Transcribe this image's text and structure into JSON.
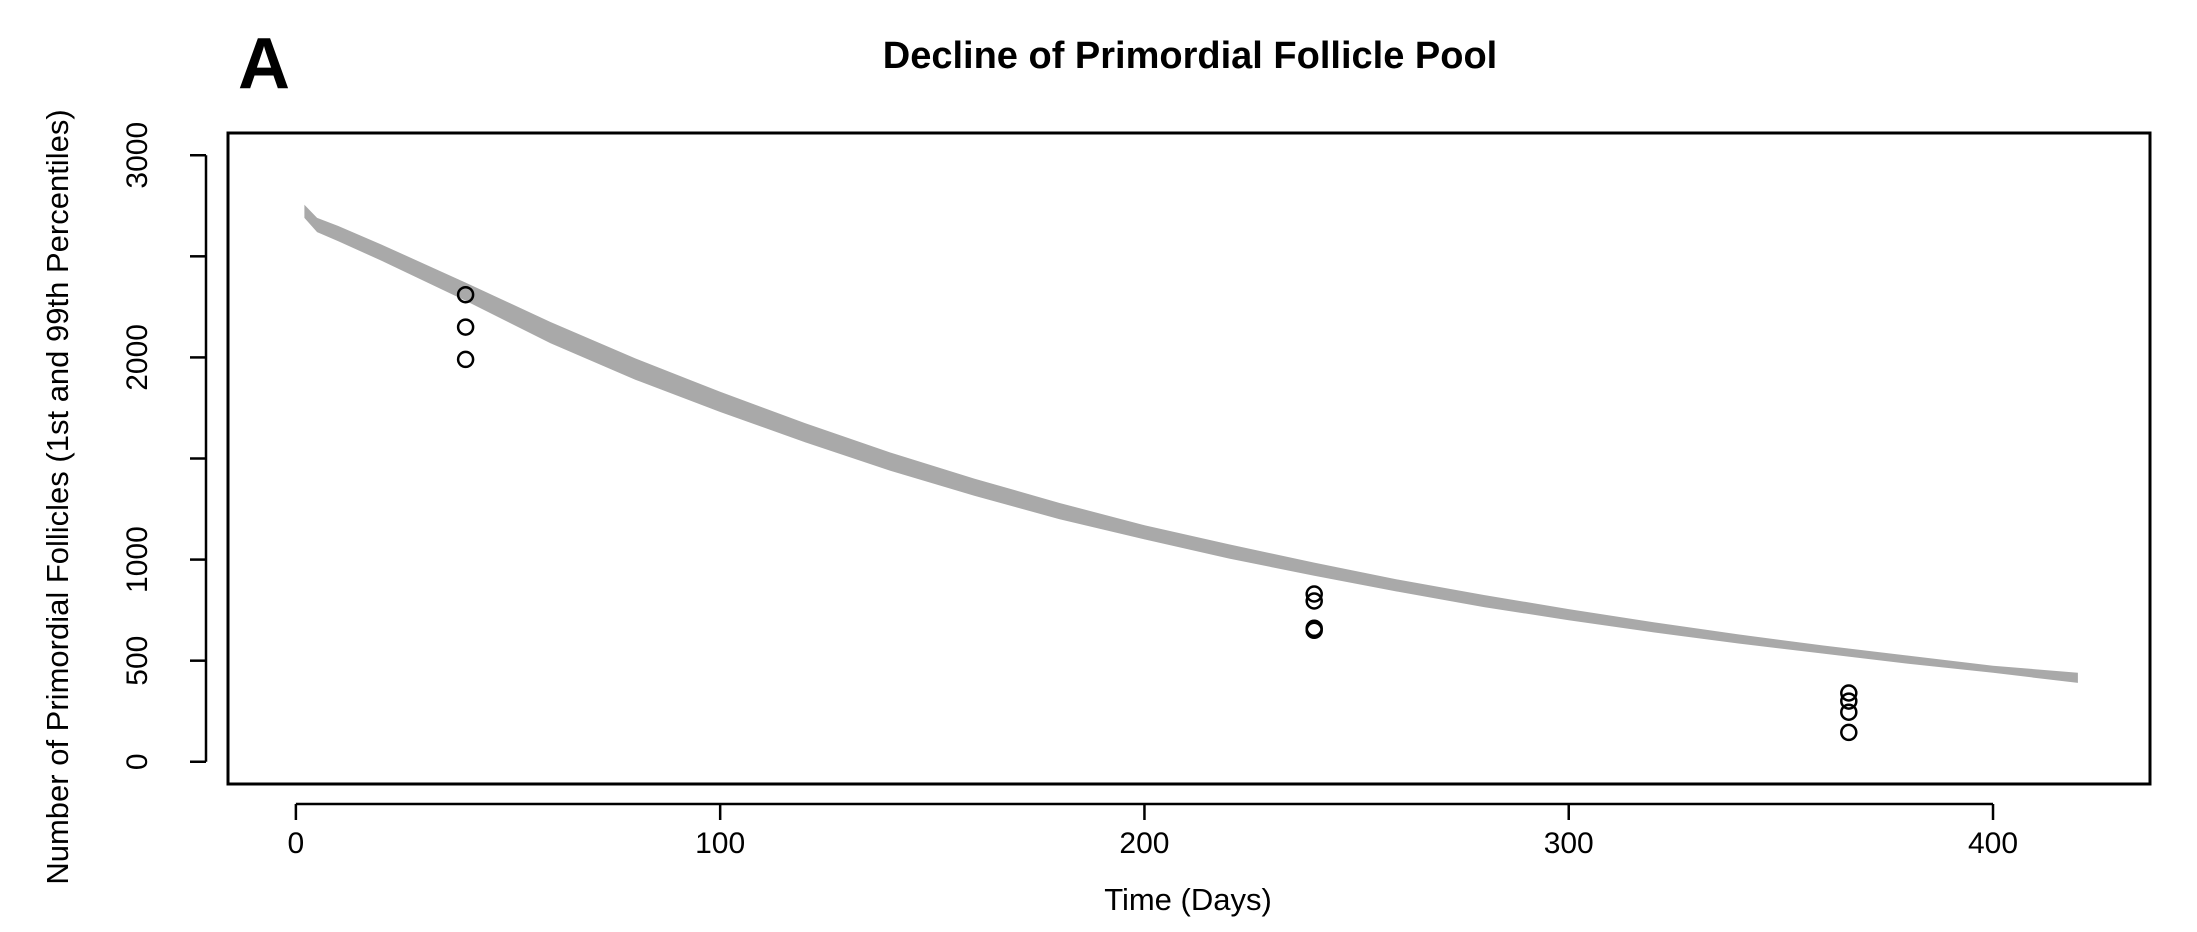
{
  "panel_label": "A",
  "chart_data": {
    "type": "line",
    "title": "Decline of Primordial Follicle Pool",
    "xlabel": "Time (Days)",
    "ylabel": "Number of Primordial Follicles (1st and 99th Percentiles)",
    "xlim": [
      -16,
      437
    ],
    "ylim": [
      -110,
      3110
    ],
    "x_ticks": [
      0,
      100,
      200,
      300,
      400
    ],
    "y_ticks": [
      0,
      500,
      1000,
      1500,
      2000,
      2500,
      3000
    ],
    "y_tick_labels": [
      "0",
      "500",
      "1000",
      "",
      "2000",
      "",
      "3000"
    ],
    "grid": false,
    "legend": "none",
    "band_color": "#a9a9a9",
    "point_color": "#000000",
    "series": [
      {
        "type": "band",
        "x": [
          2,
          5,
          10,
          20,
          40,
          60,
          80,
          100,
          120,
          140,
          160,
          180,
          200,
          220,
          240,
          260,
          280,
          300,
          320,
          340,
          360,
          380,
          400,
          420
        ],
        "lower": [
          2690,
          2620,
          2575,
          2480,
          2280,
          2070,
          1890,
          1730,
          1580,
          1440,
          1315,
          1200,
          1100,
          1005,
          920,
          840,
          765,
          700,
          640,
          585,
          535,
          485,
          440,
          390
        ],
        "upper": [
          2755,
          2690,
          2650,
          2560,
          2370,
          2175,
          1995,
          1830,
          1675,
          1530,
          1400,
          1280,
          1170,
          1075,
          985,
          900,
          825,
          755,
          690,
          630,
          575,
          525,
          475,
          440
        ]
      },
      {
        "type": "scatter",
        "x": [
          40,
          40,
          40,
          240,
          240,
          240,
          240,
          366,
          366,
          366,
          366
        ],
        "y": [
          2310,
          2150,
          1990,
          830,
          795,
          660,
          650,
          340,
          300,
          245,
          145
        ]
      }
    ]
  }
}
